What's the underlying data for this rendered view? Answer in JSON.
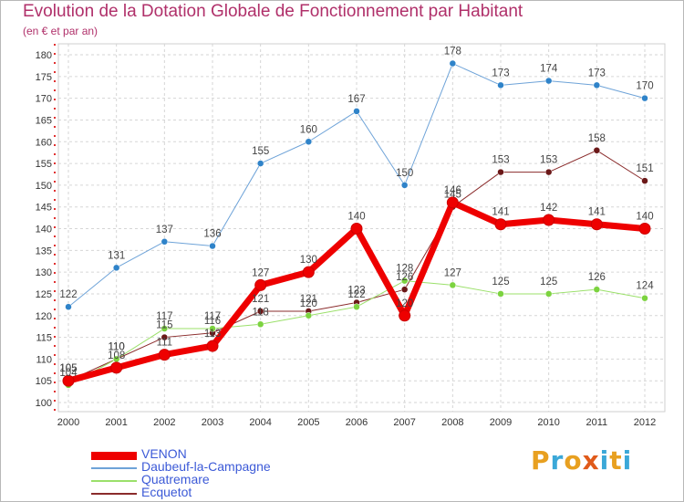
{
  "title": "Evolution de la Dotation Globale de Fonctionnement par Habitant",
  "subtitle": "(en € et par an)",
  "logo": {
    "text": "Proxiti",
    "colors": [
      "#e8a020",
      "#3ba8d8",
      "#e8a020",
      "#e05a1a",
      "#3ba8d8",
      "#e8a020",
      "#3ba8d8"
    ]
  },
  "chart_data": {
    "type": "line",
    "x": [
      "2000",
      "2001",
      "2002",
      "2003",
      "2004",
      "2005",
      "2006",
      "2007",
      "2008",
      "2009",
      "2010",
      "2011",
      "2012"
    ],
    "ylim": [
      100,
      180
    ],
    "yticks": [
      100,
      105,
      110,
      115,
      120,
      125,
      130,
      135,
      140,
      145,
      150,
      155,
      160,
      165,
      170,
      175,
      180
    ],
    "grid": true,
    "legend_position": "bottom-left",
    "series": [
      {
        "name": "VENON",
        "color": "#ee0000",
        "marker": "#ee0000",
        "width": 7,
        "values": [
          105,
          108,
          111,
          113,
          127,
          130,
          140,
          120,
          146,
          141,
          142,
          141,
          140
        ]
      },
      {
        "name": "Daubeuf-la-Campagne",
        "color": "#6ea3d8",
        "marker": "#2f83c9",
        "width": 1,
        "values": [
          122,
          131,
          137,
          136,
          155,
          160,
          167,
          150,
          178,
          173,
          174,
          173,
          170
        ]
      },
      {
        "name": "Quatremare",
        "color": "#9be06a",
        "marker": "#7cd33f",
        "width": 1,
        "values": [
          104,
          110,
          117,
          117,
          118,
          120,
          122,
          128,
          127,
          125,
          125,
          126,
          124
        ]
      },
      {
        "name": "Ecquetot",
        "color": "#8a2b2b",
        "marker": "#6b1818",
        "width": 1,
        "values": [
          105,
          110,
          115,
          116,
          121,
          121,
          123,
          126,
          145,
          153,
          153,
          158,
          151
        ]
      }
    ],
    "data_labels": [
      {
        "series": "VENON",
        "labels": [
          "105",
          "108",
          "111",
          "113",
          "127",
          "130",
          "140",
          "120",
          "146",
          "141",
          "142",
          "141",
          "140"
        ]
      },
      {
        "series": "Daubeuf-la-Campagne",
        "labels": [
          "122",
          "131",
          "137",
          "136",
          "155",
          "160",
          "167",
          "150",
          "178",
          "173",
          "174",
          "173",
          "170"
        ]
      },
      {
        "series": "Quatremare",
        "labels": [
          "104",
          "110",
          "117",
          "117",
          "118",
          "120",
          "122",
          "128",
          "127",
          "125",
          "125",
          "126",
          "124"
        ]
      },
      {
        "series": "Ecquetot",
        "labels": [
          "105",
          "110",
          "115",
          "116",
          "121",
          "121",
          "123",
          "126",
          "145",
          "153",
          "153",
          "158",
          "151"
        ]
      }
    ]
  }
}
